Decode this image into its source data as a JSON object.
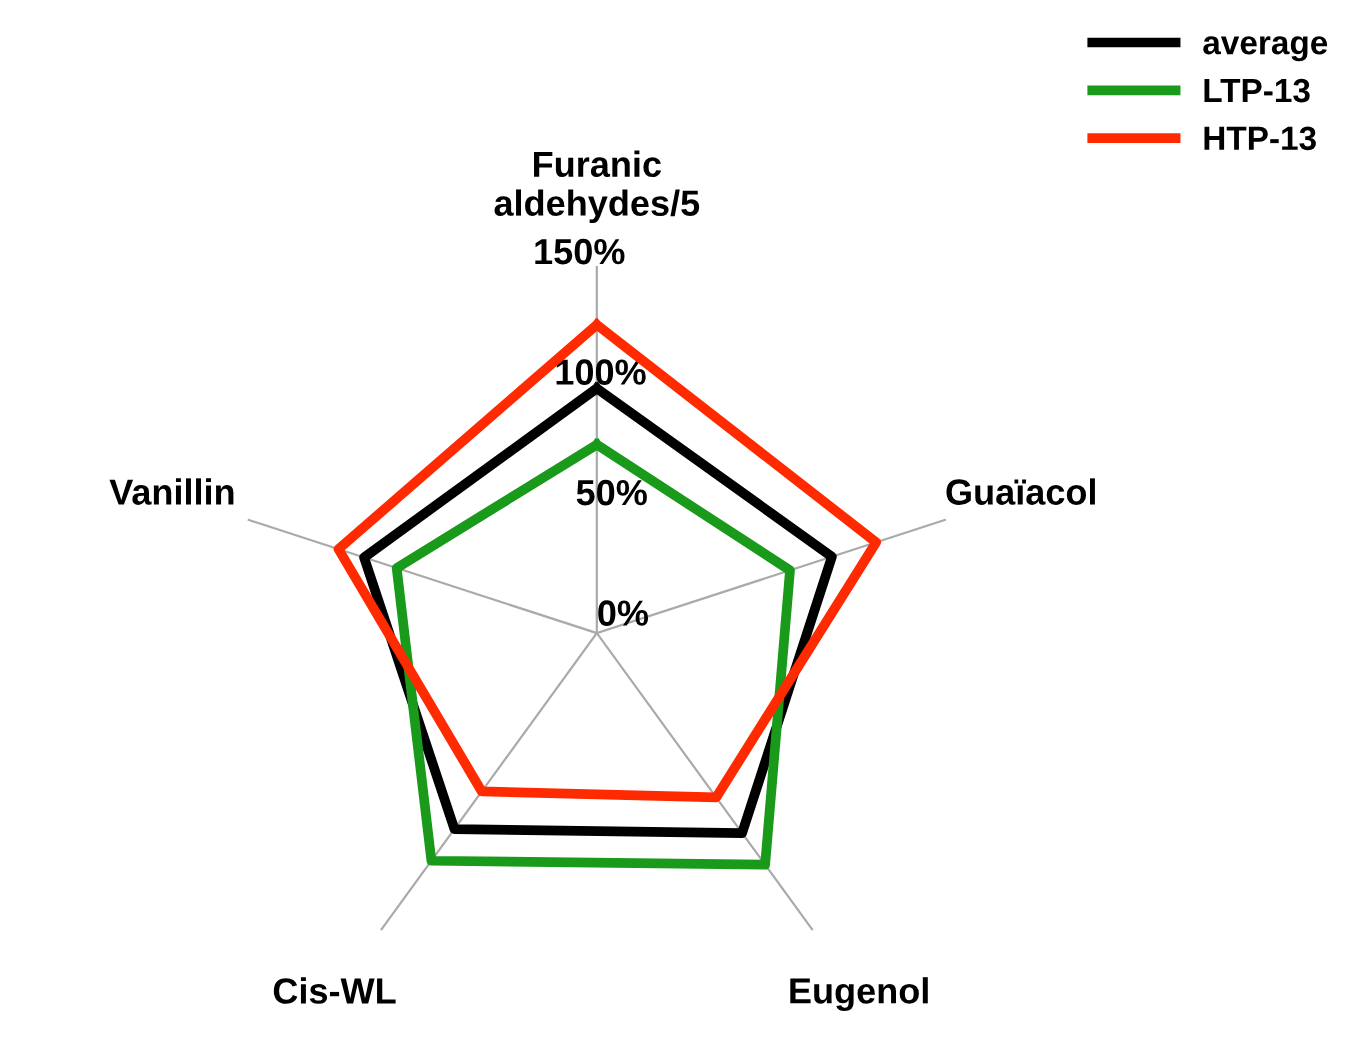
{
  "chart_data": {
    "type": "radar",
    "categories": [
      "Furanic\naldehydes/5",
      "Guaïacol",
      "Eugenol",
      "Cis-WL",
      "Vanillin"
    ],
    "series": [
      {
        "name": "average",
        "color": "#000000",
        "values": [
          100,
          101,
          101,
          99,
          100
        ]
      },
      {
        "name": "LTP-13",
        "color": "#1a9a1a",
        "values": [
          77,
          83,
          117,
          115,
          86
        ]
      },
      {
        "name": "HTP-13",
        "color": "#ff2a00",
        "values": [
          126,
          120,
          83,
          80,
          111
        ]
      }
    ],
    "ylim": [
      0,
      150
    ],
    "yticks": [
      {
        "value": 0,
        "label": "0%"
      },
      {
        "value": 50,
        "label": "50%"
      },
      {
        "value": 100,
        "label": "100%"
      },
      {
        "value": 150,
        "label": "150%"
      }
    ],
    "grid": "x",
    "legend": "top right"
  }
}
